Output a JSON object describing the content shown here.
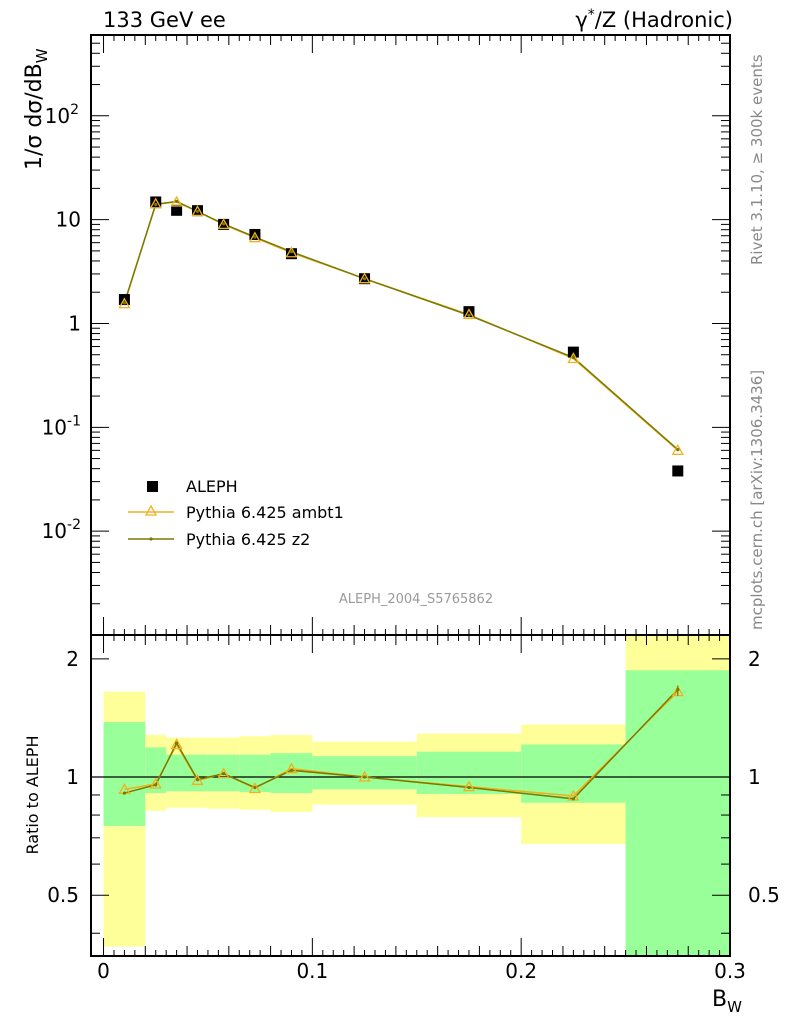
{
  "header": {
    "left": "133 GeV ee",
    "right_base": "γ",
    "right_sup": "*",
    "right_rest": "/Z (Hadronic)"
  },
  "side_labels": {
    "top": "Rivet 3.1.10, ≥ 300k events",
    "bottom": "mcplots.cern.ch [arXiv:1306.3436]"
  },
  "analysis_ref": "ALEPH_2004_S5765862",
  "colors": {
    "data": "#000000",
    "ambt1": "#f0b020",
    "z2": "#7a7a00",
    "band_inner": "#99ff99",
    "band_outer": "#ffff99"
  },
  "chart_data": [
    {
      "type": "scatter",
      "panel": "main",
      "ylabel": "1/σ dσ/dB_W",
      "yscale": "log",
      "ylim": [
        0.001,
        600
      ],
      "xlim": [
        -0.006,
        0.3
      ],
      "y_tick_labels": [
        "10^-2",
        "10^-1",
        "1",
        "10",
        "10^2"
      ],
      "legend_position": "bottom-left",
      "x": [
        0.01,
        0.025,
        0.035,
        0.045,
        0.0575,
        0.0725,
        0.09,
        0.125,
        0.175,
        0.225,
        0.275
      ],
      "series": [
        {
          "name": "ALEPH",
          "values": [
            1.7,
            14.8,
            12.3,
            12.2,
            9.0,
            7.2,
            4.7,
            2.7,
            1.3,
            0.53,
            0.038
          ]
        },
        {
          "name": "Pythia 6.425 ambt1",
          "values": [
            1.55,
            14.2,
            14.8,
            12.0,
            9.0,
            6.7,
            4.8,
            2.7,
            1.22,
            0.46,
            0.06
          ]
        },
        {
          "name": "Pythia 6.425 z2",
          "values": [
            1.58,
            14.0,
            15.0,
            12.0,
            9.1,
            6.8,
            4.9,
            2.7,
            1.2,
            0.47,
            0.061
          ]
        }
      ]
    },
    {
      "type": "line",
      "panel": "ratio",
      "ylabel": "Ratio to ALEPH",
      "xlabel": "B_W",
      "ylim": [
        0.35,
        2.3
      ],
      "xlim": [
        -0.006,
        0.3
      ],
      "x_tick_labels": [
        "0",
        "0.1",
        "0.2",
        "0.3"
      ],
      "y_tick_labels": [
        "0.5",
        "1",
        "2"
      ],
      "bin_edges": [
        0,
        0.02,
        0.03,
        0.04,
        0.05,
        0.065,
        0.08,
        0.1,
        0.15,
        0.2,
        0.25,
        0.3
      ],
      "band_inner": {
        "lo": [
          0.75,
          0.91,
          0.92,
          0.92,
          0.92,
          0.915,
          0.91,
          0.93,
          0.905,
          0.86,
          0.0
        ],
        "hi": [
          1.38,
          1.19,
          1.14,
          1.14,
          1.14,
          1.14,
          1.15,
          1.13,
          1.16,
          1.21,
          1.87
        ]
      },
      "band_outer": {
        "lo": [
          0.37,
          0.82,
          0.835,
          0.835,
          0.83,
          0.825,
          0.815,
          0.85,
          0.79,
          0.675,
          0.0
        ],
        "hi": [
          1.65,
          1.28,
          1.26,
          1.26,
          1.26,
          1.27,
          1.28,
          1.23,
          1.29,
          1.36,
          2.5
        ]
      },
      "x": [
        0.01,
        0.025,
        0.035,
        0.045,
        0.0575,
        0.0725,
        0.09,
        0.125,
        0.175,
        0.225,
        0.275
      ],
      "series": [
        {
          "name": "Pythia 6.425 ambt1",
          "values": [
            0.93,
            0.96,
            1.21,
            0.98,
            1.02,
            0.935,
            1.05,
            1.0,
            0.945,
            0.895,
            1.65
          ]
        },
        {
          "name": "Pythia 6.425 z2",
          "values": [
            0.91,
            0.955,
            1.22,
            0.985,
            1.02,
            0.94,
            1.04,
            1.0,
            0.94,
            0.88,
            1.67
          ]
        }
      ],
      "reference_line": 1
    }
  ]
}
